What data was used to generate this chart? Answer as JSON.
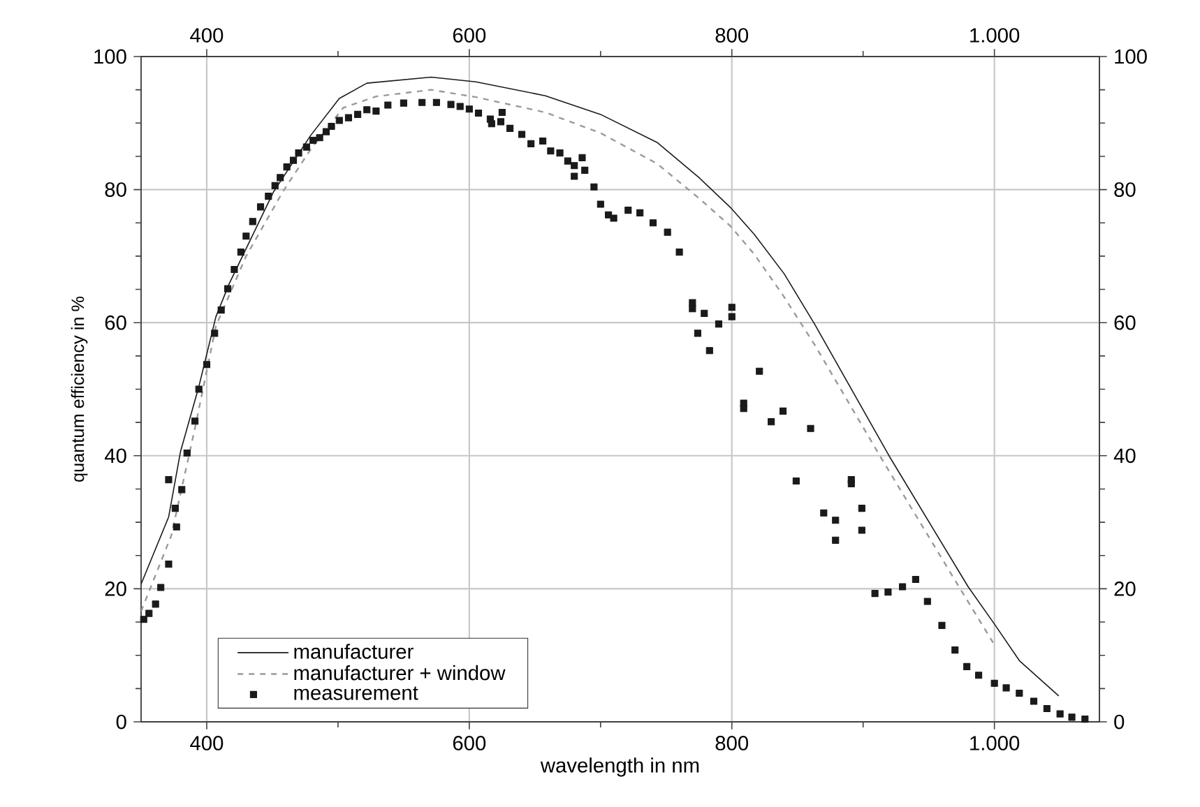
{
  "chart_data": {
    "type": "line",
    "xlabel": "wavelength in nm",
    "ylabel": "quantum efficiency in %",
    "xlim": [
      350,
      1080
    ],
    "ylim": [
      0,
      100
    ],
    "x2lim": [
      350,
      1080
    ],
    "y2lim": [
      0,
      100
    ],
    "xticks": [
      400,
      {
        "value": 500,
        "label": null
      },
      600,
      {
        "value": 700,
        "label": null
      },
      800,
      {
        "value": 900,
        "label": null
      },
      {
        "value": 1000,
        "label": "1.000"
      }
    ],
    "x2ticks": [
      400,
      {
        "value": 500,
        "label": null
      },
      600,
      {
        "value": 700,
        "label": null
      },
      800,
      {
        "value": 900,
        "label": null
      },
      {
        "value": 1000,
        "label": "1.000"
      }
    ],
    "yticks": [
      0,
      {
        "value": 5,
        "label": null
      },
      {
        "value": 10,
        "label": null
      },
      {
        "value": 15,
        "label": null
      },
      20,
      {
        "value": 25,
        "label": null
      },
      {
        "value": 30,
        "label": null
      },
      {
        "value": 35,
        "label": null
      },
      40,
      {
        "value": 45,
        "label": null
      },
      {
        "value": 50,
        "label": null
      },
      {
        "value": 55,
        "label": null
      },
      60,
      {
        "value": 65,
        "label": null
      },
      {
        "value": 70,
        "label": null
      },
      {
        "value": 75,
        "label": null
      },
      80,
      {
        "value": 85,
        "label": null
      },
      {
        "value": 90,
        "label": null
      },
      {
        "value": 95,
        "label": null
      },
      100
    ],
    "y2ticks": [
      0,
      {
        "value": 5,
        "label": null
      },
      {
        "value": 10,
        "label": null
      },
      {
        "value": 15,
        "label": null
      },
      20,
      {
        "value": 25,
        "label": null
      },
      {
        "value": 30,
        "label": null
      },
      {
        "value": 35,
        "label": null
      },
      40,
      {
        "value": 45,
        "label": null
      },
      {
        "value": 50,
        "label": null
      },
      {
        "value": 55,
        "label": null
      },
      60,
      {
        "value": 65,
        "label": null
      },
      {
        "value": 70,
        "label": null
      },
      {
        "value": 75,
        "label": null
      },
      80,
      {
        "value": 85,
        "label": null
      },
      {
        "value": 90,
        "label": null
      },
      {
        "value": 95,
        "label": null
      },
      100
    ],
    "grid": true,
    "legend": "bottom left",
    "series": [
      {
        "name": "manufacturer",
        "color": "#1a1a1a",
        "line_style": "solid",
        "marker": "none",
        "x": [
          350,
          371,
          380,
          394,
          407,
          417,
          451,
          479,
          501,
          522,
          571,
          605,
          658,
          700,
          743,
          775,
          799,
          817,
          840,
          863,
          920,
          980,
          1000,
          1019,
          1049
        ],
        "values": [
          20.7,
          30.8,
          40.6,
          50.4,
          60.9,
          65.8,
          79.7,
          88.1,
          93.7,
          96.0,
          96.9,
          96.2,
          94.1,
          91.3,
          87.1,
          81.8,
          77.3,
          73.3,
          67.3,
          59.8,
          39.9,
          20.3,
          14.7,
          9.2,
          3.9
        ]
      },
      {
        "name": "manufacturer + window",
        "color": "#9a9a9a",
        "line_style": "dashed",
        "marker": "none",
        "x": [
          350,
          373,
          391,
          407,
          430,
          458,
          479,
          504,
          529,
          571,
          605,
          658,
          700,
          743,
          775,
          799,
          817,
          838,
          863,
          913,
          973,
          999
        ],
        "values": [
          16.6,
          28.0,
          44.1,
          59.5,
          70.0,
          79.7,
          86.0,
          92.3,
          94.0,
          95.0,
          93.9,
          91.6,
          88.5,
          83.9,
          78.7,
          74.5,
          70.3,
          64.4,
          56.7,
          39.9,
          20.3,
          11.9
        ]
      },
      {
        "name": "measurement",
        "type": "scatter",
        "color": "#1a1a1a",
        "marker": "square",
        "x": [
          352,
          356,
          361,
          365,
          371,
          371,
          377,
          376,
          381,
          385,
          391,
          394,
          400,
          406,
          411,
          416,
          421,
          426,
          430,
          435,
          441,
          447,
          452,
          456,
          461,
          466,
          470,
          476,
          481,
          486,
          491,
          495,
          501,
          508,
          515,
          522,
          529,
          538,
          550,
          564,
          575,
          586,
          593,
          600,
          607,
          616,
          617,
          624,
          625,
          631,
          640,
          647,
          656,
          662,
          669,
          675,
          680,
          680,
          686,
          688,
          695,
          700,
          706,
          710,
          721,
          730,
          740,
          751,
          760,
          770,
          770,
          779,
          774,
          783,
          790,
          800,
          800,
          821,
          809,
          809,
          830,
          839,
          860,
          849,
          891,
          891,
          870,
          879,
          879,
          899,
          899,
          909,
          919,
          930,
          940,
          949,
          960,
          970,
          979,
          988,
          1000,
          1009,
          1019,
          1030,
          1040,
          1050,
          1059,
          1069
        ],
        "values": [
          15.4,
          16.3,
          17.7,
          20.2,
          23.7,
          36.4,
          29.3,
          32.1,
          34.9,
          40.4,
          45.2,
          50.0,
          53.7,
          58.4,
          61.9,
          65.1,
          68.0,
          70.6,
          73.0,
          75.2,
          77.4,
          79.0,
          80.6,
          81.8,
          83.4,
          84.4,
          85.5,
          86.4,
          87.4,
          87.8,
          88.7,
          89.5,
          90.4,
          90.8,
          91.3,
          92.0,
          91.8,
          92.7,
          93.0,
          93.1,
          93.1,
          92.8,
          92.5,
          92.1,
          91.5,
          90.6,
          89.9,
          90.2,
          91.6,
          89.2,
          88.3,
          86.9,
          87.3,
          85.8,
          85.5,
          84.3,
          82.0,
          83.6,
          84.8,
          82.9,
          80.4,
          77.8,
          76.2,
          75.7,
          76.9,
          76.5,
          75.0,
          73.6,
          70.6,
          63.0,
          62.1,
          61.4,
          58.4,
          55.8,
          59.8,
          62.3,
          60.9,
          52.7,
          47.9,
          47.1,
          45.1,
          46.7,
          44.1,
          36.2,
          36.4,
          35.8,
          31.4,
          30.3,
          27.3,
          32.1,
          28.8,
          19.3,
          19.5,
          20.3,
          21.4,
          18.1,
          14.5,
          10.8,
          8.3,
          7.0,
          5.8,
          5.1,
          4.3,
          3.1,
          2.0,
          1.2,
          0.7,
          0.4
        ]
      }
    ]
  }
}
